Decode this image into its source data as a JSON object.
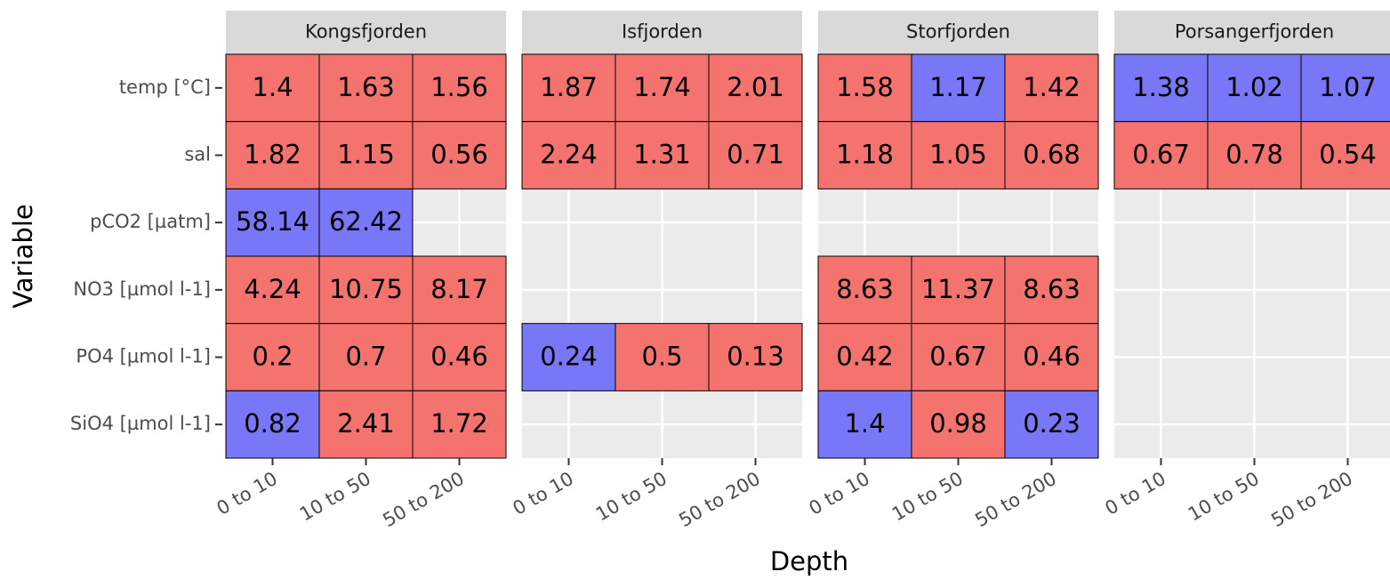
{
  "chart_data": {
    "type": "heatmap",
    "x_label": "Depth",
    "y_label": "Variable",
    "categories": [
      "0 to 10",
      "10 to 50",
      "50 to 200"
    ],
    "rows": [
      "temp [°C]",
      "sal",
      "pCO2 [µatm]",
      "NO3 [µmol l-1]",
      "PO4 [µmol l-1]",
      "SiO4 [µmol l-1]"
    ],
    "grid": true,
    "facets": [
      {
        "name": "Kongsfjorden",
        "values": [
          [
            1.4,
            1.63,
            1.56
          ],
          [
            1.82,
            1.15,
            0.56
          ],
          [
            58.14,
            62.42,
            null
          ],
          [
            4.24,
            10.75,
            8.17
          ],
          [
            0.2,
            0.7,
            0.46
          ],
          [
            0.82,
            2.41,
            1.72
          ]
        ],
        "colors": [
          [
            "#f5736f",
            "#f5736f",
            "#f5736f"
          ],
          [
            "#f5736f",
            "#f5736f",
            "#f5736f"
          ],
          [
            "#7777f7",
            "#7777f7",
            null
          ],
          [
            "#f5736f",
            "#f5736f",
            "#f5736f"
          ],
          [
            "#f5736f",
            "#f5736f",
            "#f5736f"
          ],
          [
            "#7777f7",
            "#f5736f",
            "#f5736f"
          ]
        ]
      },
      {
        "name": "Isfjorden",
        "values": [
          [
            1.87,
            1.74,
            2.01
          ],
          [
            2.24,
            1.31,
            0.71
          ],
          [
            null,
            null,
            null
          ],
          [
            null,
            null,
            null
          ],
          [
            0.24,
            0.5,
            0.13
          ],
          [
            null,
            null,
            null
          ]
        ],
        "colors": [
          [
            "#f5736f",
            "#f5736f",
            "#f5736f"
          ],
          [
            "#f5736f",
            "#f5736f",
            "#f5736f"
          ],
          [
            null,
            null,
            null
          ],
          [
            null,
            null,
            null
          ],
          [
            "#7777f7",
            "#f5736f",
            "#f5736f"
          ],
          [
            null,
            null,
            null
          ]
        ]
      },
      {
        "name": "Storfjorden",
        "values": [
          [
            1.58,
            1.17,
            1.42
          ],
          [
            1.18,
            1.05,
            0.68
          ],
          [
            null,
            null,
            null
          ],
          [
            8.63,
            11.37,
            8.63
          ],
          [
            0.42,
            0.67,
            0.46
          ],
          [
            1.4,
            0.98,
            0.23
          ]
        ],
        "colors": [
          [
            "#f5736f",
            "#7777f7",
            "#f5736f"
          ],
          [
            "#f5736f",
            "#f5736f",
            "#f5736f"
          ],
          [
            null,
            null,
            null
          ],
          [
            "#f5736f",
            "#f5736f",
            "#f5736f"
          ],
          [
            "#f5736f",
            "#f5736f",
            "#f5736f"
          ],
          [
            "#7777f7",
            "#f5736f",
            "#7777f7"
          ]
        ]
      },
      {
        "name": "Porsangerfjorden",
        "values": [
          [
            1.38,
            1.02,
            1.07
          ],
          [
            0.67,
            0.78,
            0.54
          ],
          [
            null,
            null,
            null
          ],
          [
            null,
            null,
            null
          ],
          [
            null,
            null,
            null
          ],
          [
            null,
            null,
            null
          ]
        ],
        "colors": [
          [
            "#7777f7",
            "#7777f7",
            "#7777f7"
          ],
          [
            "#f5736f",
            "#f5736f",
            "#f5736f"
          ],
          [
            null,
            null,
            null
          ],
          [
            null,
            null,
            null
          ],
          [
            null,
            null,
            null
          ],
          [
            null,
            null,
            null
          ]
        ]
      }
    ]
  }
}
